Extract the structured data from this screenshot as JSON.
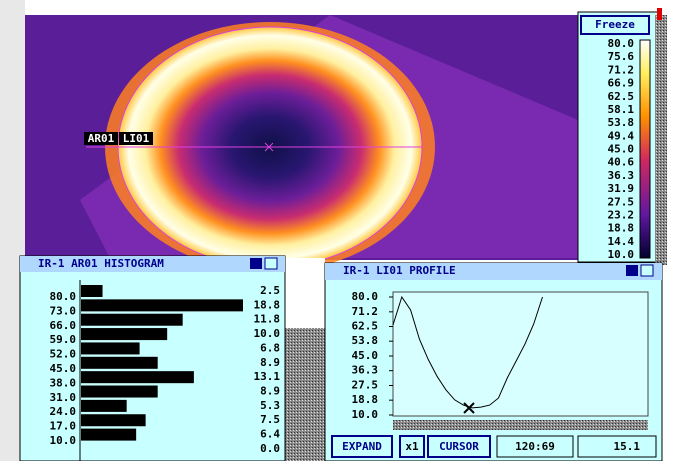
{
  "freeze_button": "Freeze",
  "color_scale": {
    "labels": [
      "80.0",
      "75.6",
      "71.2",
      "66.9",
      "62.5",
      "58.1",
      "53.8",
      "49.4",
      "45.0",
      "40.6",
      "36.3",
      "31.9",
      "27.5",
      "23.2",
      "18.8",
      "14.4",
      "10.0"
    ]
  },
  "image": {
    "area_label": "AR01",
    "line_label": "LI01"
  },
  "histogram": {
    "title": "IR-1 AR01 HISTOGRAM",
    "bin_labels": [
      "80.0",
      "73.0",
      "66.0",
      "59.0",
      "52.0",
      "45.0",
      "38.0",
      "31.0",
      "24.0",
      "17.0",
      "10.0"
    ],
    "values": [
      2.5,
      18.8,
      11.8,
      10.0,
      6.8,
      8.9,
      13.1,
      8.9,
      5.3,
      7.5,
      6.4,
      0.0
    ],
    "value_labels": [
      "2.5",
      "18.8",
      "11.8",
      "10.0",
      "6.8",
      "8.9",
      "13.1",
      "8.9",
      "5.3",
      "7.5",
      "6.4",
      "0.0"
    ]
  },
  "profile": {
    "title": "IR-1 LI01 PROFILE",
    "ylim": [
      10,
      80
    ],
    "yticks": [
      {
        "value": 80,
        "label": "80.0"
      },
      {
        "value": 71.2,
        "label": "71.2"
      },
      {
        "value": 62.5,
        "label": "62.5"
      },
      {
        "value": 53.8,
        "label": "53.8"
      },
      {
        "value": 45,
        "label": "45.0"
      },
      {
        "value": 36.3,
        "label": "36.3"
      },
      {
        "value": 27.5,
        "label": "27.5"
      },
      {
        "value": 18.8,
        "label": "18.8"
      },
      {
        "value": 10,
        "label": "10.0"
      }
    ],
    "values": [
      63.4,
      80,
      72.3,
      55,
      43,
      33,
      25,
      19,
      15.9,
      14.2,
      14.7,
      15.9,
      20.1,
      32,
      42,
      52,
      64,
      80,
      null,
      null,
      null,
      null,
      null,
      null,
      null,
      null,
      null,
      null,
      null,
      null
    ],
    "buttons": [
      "EXPAND",
      "x1",
      "CURSOR"
    ],
    "cursor_position": "120:69",
    "cursor_value": "15.1"
  }
}
